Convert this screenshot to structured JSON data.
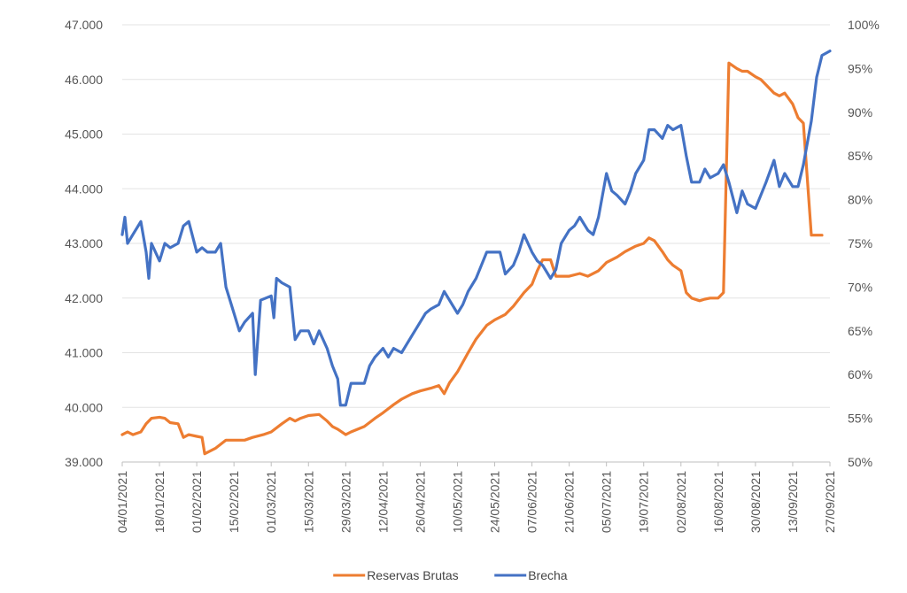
{
  "chart_data": {
    "type": "line",
    "title": "",
    "xlabel": "",
    "ylabel_left": "",
    "ylabel_right": "",
    "x_tick_labels": [
      "04/01/2021",
      "18/01/2021",
      "01/02/2021",
      "15/02/2021",
      "01/03/2021",
      "15/03/2021",
      "29/03/2021",
      "12/04/2021",
      "26/04/2021",
      "10/05/2021",
      "24/05/2021",
      "07/06/2021",
      "21/06/2021",
      "05/07/2021",
      "19/07/2021",
      "02/08/2021",
      "16/08/2021",
      "30/08/2021",
      "13/09/2021",
      "27/09/2021"
    ],
    "y_left": {
      "min": 39000,
      "max": 47000,
      "ticks": [
        "39.000",
        "40.000",
        "41.000",
        "42.000",
        "43.000",
        "44.000",
        "45.000",
        "46.000",
        "47.000"
      ]
    },
    "y_right": {
      "min": 50,
      "max": 100,
      "ticks": [
        "50%",
        "55%",
        "60%",
        "65%",
        "70%",
        "75%",
        "80%",
        "85%",
        "90%",
        "95%",
        "100%"
      ]
    },
    "grid": true,
    "legend_position": "bottom",
    "series": [
      {
        "name": "Reservas Brutas",
        "axis": "left",
        "color": "#ED7D31",
        "points": [
          [
            "04/01/2021",
            39500
          ],
          [
            "06/01/2021",
            39550
          ],
          [
            "08/01/2021",
            39500
          ],
          [
            "11/01/2021",
            39550
          ],
          [
            "13/01/2021",
            39700
          ],
          [
            "15/01/2021",
            39800
          ],
          [
            "18/01/2021",
            39820
          ],
          [
            "20/01/2021",
            39800
          ],
          [
            "22/01/2021",
            39720
          ],
          [
            "25/01/2021",
            39700
          ],
          [
            "27/01/2021",
            39450
          ],
          [
            "29/01/2021",
            39500
          ],
          [
            "01/02/2021",
            39470
          ],
          [
            "03/02/2021",
            39450
          ],
          [
            "04/02/2021",
            39150
          ],
          [
            "08/02/2021",
            39250
          ],
          [
            "12/02/2021",
            39400
          ],
          [
            "15/02/2021",
            39400
          ],
          [
            "19/02/2021",
            39400
          ],
          [
            "22/02/2021",
            39450
          ],
          [
            "26/02/2021",
            39500
          ],
          [
            "01/03/2021",
            39550
          ],
          [
            "05/03/2021",
            39700
          ],
          [
            "08/03/2021",
            39800
          ],
          [
            "10/03/2021",
            39750
          ],
          [
            "12/03/2021",
            39800
          ],
          [
            "15/03/2021",
            39850
          ],
          [
            "19/03/2021",
            39870
          ],
          [
            "22/03/2021",
            39750
          ],
          [
            "24/03/2021",
            39650
          ],
          [
            "26/03/2021",
            39600
          ],
          [
            "29/03/2021",
            39500
          ],
          [
            "31/03/2021",
            39550
          ],
          [
            "05/04/2021",
            39650
          ],
          [
            "09/04/2021",
            39800
          ],
          [
            "12/04/2021",
            39900
          ],
          [
            "16/04/2021",
            40050
          ],
          [
            "19/04/2021",
            40150
          ],
          [
            "23/04/2021",
            40250
          ],
          [
            "26/04/2021",
            40300
          ],
          [
            "30/04/2021",
            40350
          ],
          [
            "03/05/2021",
            40400
          ],
          [
            "05/05/2021",
            40250
          ],
          [
            "07/05/2021",
            40450
          ],
          [
            "10/05/2021",
            40650
          ],
          [
            "14/05/2021",
            41000
          ],
          [
            "17/05/2021",
            41250
          ],
          [
            "21/05/2021",
            41500
          ],
          [
            "24/05/2021",
            41600
          ],
          [
            "28/05/2021",
            41700
          ],
          [
            "31/05/2021",
            41850
          ],
          [
            "04/06/2021",
            42100
          ],
          [
            "07/06/2021",
            42250
          ],
          [
            "09/06/2021",
            42500
          ],
          [
            "11/06/2021",
            42700
          ],
          [
            "14/06/2021",
            42700
          ],
          [
            "16/06/2021",
            42400
          ],
          [
            "21/06/2021",
            42400
          ],
          [
            "25/06/2021",
            42450
          ],
          [
            "28/06/2021",
            42400
          ],
          [
            "02/07/2021",
            42500
          ],
          [
            "05/07/2021",
            42650
          ],
          [
            "09/07/2021",
            42750
          ],
          [
            "12/07/2021",
            42850
          ],
          [
            "16/07/2021",
            42950
          ],
          [
            "19/07/2021",
            43000
          ],
          [
            "21/07/2021",
            43100
          ],
          [
            "23/07/2021",
            43050
          ],
          [
            "26/07/2021",
            42850
          ],
          [
            "28/07/2021",
            42700
          ],
          [
            "30/07/2021",
            42600
          ],
          [
            "02/08/2021",
            42500
          ],
          [
            "04/08/2021",
            42100
          ],
          [
            "06/08/2021",
            42000
          ],
          [
            "09/08/2021",
            41950
          ],
          [
            "11/08/2021",
            41980
          ],
          [
            "13/08/2021",
            42000
          ],
          [
            "16/08/2021",
            42000
          ],
          [
            "18/08/2021",
            42100
          ],
          [
            "20/08/2021",
            46300
          ],
          [
            "23/08/2021",
            46200
          ],
          [
            "25/08/2021",
            46150
          ],
          [
            "27/08/2021",
            46150
          ],
          [
            "30/08/2021",
            46050
          ],
          [
            "01/09/2021",
            46000
          ],
          [
            "03/09/2021",
            45900
          ],
          [
            "06/09/2021",
            45750
          ],
          [
            "08/09/2021",
            45700
          ],
          [
            "10/09/2021",
            45750
          ],
          [
            "13/09/2021",
            45550
          ],
          [
            "15/09/2021",
            45300
          ],
          [
            "17/09/2021",
            45200
          ],
          [
            "20/09/2021",
            43150
          ],
          [
            "22/09/2021",
            43150
          ],
          [
            "24/09/2021",
            43150
          ]
        ]
      },
      {
        "name": "Brecha",
        "axis": "right",
        "color": "#4472C4",
        "points": [
          [
            "04/01/2021",
            76
          ],
          [
            "05/01/2021",
            78
          ],
          [
            "06/01/2021",
            75
          ],
          [
            "08/01/2021",
            76
          ],
          [
            "11/01/2021",
            77.5
          ],
          [
            "13/01/2021",
            74
          ],
          [
            "14/01/2021",
            71
          ],
          [
            "15/01/2021",
            75
          ],
          [
            "18/01/2021",
            73
          ],
          [
            "20/01/2021",
            75
          ],
          [
            "22/01/2021",
            74.5
          ],
          [
            "25/01/2021",
            75
          ],
          [
            "27/01/2021",
            77
          ],
          [
            "29/01/2021",
            77.5
          ],
          [
            "01/02/2021",
            74
          ],
          [
            "03/02/2021",
            74.5
          ],
          [
            "05/02/2021",
            74
          ],
          [
            "08/02/2021",
            74
          ],
          [
            "10/02/2021",
            75
          ],
          [
            "12/02/2021",
            70
          ],
          [
            "15/02/2021",
            67
          ],
          [
            "17/02/2021",
            65
          ],
          [
            "19/02/2021",
            66
          ],
          [
            "22/02/2021",
            67
          ],
          [
            "23/02/2021",
            60
          ],
          [
            "25/02/2021",
            68.5
          ],
          [
            "01/03/2021",
            69
          ],
          [
            "02/03/2021",
            66.5
          ],
          [
            "03/03/2021",
            71
          ],
          [
            "05/03/2021",
            70.5
          ],
          [
            "08/03/2021",
            70
          ],
          [
            "10/03/2021",
            64
          ],
          [
            "12/03/2021",
            65
          ],
          [
            "15/03/2021",
            65
          ],
          [
            "17/03/2021",
            63.5
          ],
          [
            "19/03/2021",
            65
          ],
          [
            "22/03/2021",
            63
          ],
          [
            "24/03/2021",
            61
          ],
          [
            "26/03/2021",
            59.5
          ],
          [
            "27/03/2021",
            56.5
          ],
          [
            "29/03/2021",
            56.5
          ],
          [
            "31/03/2021",
            59
          ],
          [
            "05/04/2021",
            59
          ],
          [
            "07/04/2021",
            61
          ],
          [
            "09/04/2021",
            62
          ],
          [
            "12/04/2021",
            63
          ],
          [
            "14/04/2021",
            62
          ],
          [
            "16/04/2021",
            63
          ],
          [
            "19/04/2021",
            62.5
          ],
          [
            "21/04/2021",
            63.5
          ],
          [
            "23/04/2021",
            64.5
          ],
          [
            "26/04/2021",
            66
          ],
          [
            "28/04/2021",
            67
          ],
          [
            "30/04/2021",
            67.5
          ],
          [
            "03/05/2021",
            68
          ],
          [
            "05/05/2021",
            69.5
          ],
          [
            "07/05/2021",
            68.5
          ],
          [
            "10/05/2021",
            67
          ],
          [
            "12/05/2021",
            68
          ],
          [
            "14/05/2021",
            69.5
          ],
          [
            "17/05/2021",
            71
          ],
          [
            "19/05/2021",
            72.5
          ],
          [
            "21/05/2021",
            74
          ],
          [
            "24/05/2021",
            74
          ],
          [
            "26/05/2021",
            74
          ],
          [
            "28/05/2021",
            71.5
          ],
          [
            "31/05/2021",
            72.5
          ],
          [
            "02/06/2021",
            74
          ],
          [
            "04/06/2021",
            76
          ],
          [
            "07/06/2021",
            74
          ],
          [
            "09/06/2021",
            73
          ],
          [
            "11/06/2021",
            72.5
          ],
          [
            "14/06/2021",
            71
          ],
          [
            "16/06/2021",
            72
          ],
          [
            "18/06/2021",
            75
          ],
          [
            "21/06/2021",
            76.5
          ],
          [
            "23/06/2021",
            77
          ],
          [
            "25/06/2021",
            78
          ],
          [
            "28/06/2021",
            76.5
          ],
          [
            "30/06/2021",
            76
          ],
          [
            "02/07/2021",
            78
          ],
          [
            "05/07/2021",
            83
          ],
          [
            "07/07/2021",
            81
          ],
          [
            "09/07/2021",
            80.5
          ],
          [
            "12/07/2021",
            79.5
          ],
          [
            "14/07/2021",
            81
          ],
          [
            "16/07/2021",
            83
          ],
          [
            "19/07/2021",
            84.5
          ],
          [
            "21/07/2021",
            88
          ],
          [
            "23/07/2021",
            88
          ],
          [
            "26/07/2021",
            87
          ],
          [
            "28/07/2021",
            88.5
          ],
          [
            "30/07/2021",
            88
          ],
          [
            "02/08/2021",
            88.5
          ],
          [
            "04/08/2021",
            85
          ],
          [
            "06/08/2021",
            82
          ],
          [
            "09/08/2021",
            82
          ],
          [
            "11/08/2021",
            83.5
          ],
          [
            "13/08/2021",
            82.5
          ],
          [
            "16/08/2021",
            83
          ],
          [
            "18/08/2021",
            84
          ],
          [
            "20/08/2021",
            82
          ],
          [
            "23/08/2021",
            78.5
          ],
          [
            "25/08/2021",
            81
          ],
          [
            "27/08/2021",
            79.5
          ],
          [
            "30/08/2021",
            79
          ],
          [
            "01/09/2021",
            80.5
          ],
          [
            "03/09/2021",
            82
          ],
          [
            "06/09/2021",
            84.5
          ],
          [
            "08/09/2021",
            81.5
          ],
          [
            "10/09/2021",
            83
          ],
          [
            "13/09/2021",
            81.5
          ],
          [
            "15/09/2021",
            81.5
          ],
          [
            "17/09/2021",
            84
          ],
          [
            "20/09/2021",
            89
          ],
          [
            "22/09/2021",
            94
          ],
          [
            "24/09/2021",
            96.5
          ],
          [
            "27/09/2021",
            97
          ]
        ]
      }
    ]
  }
}
